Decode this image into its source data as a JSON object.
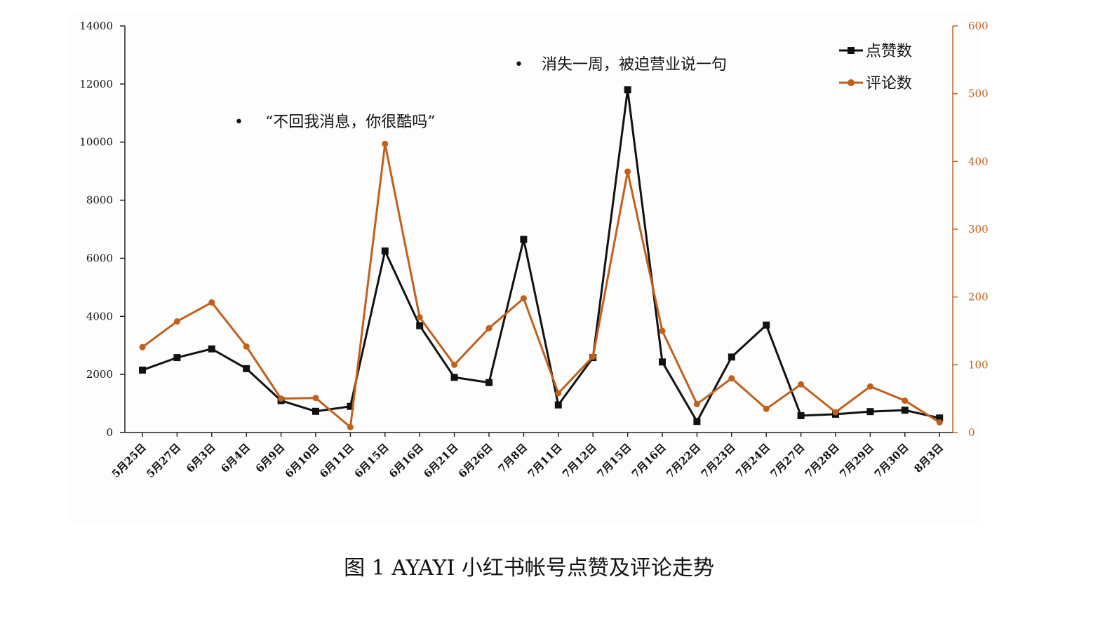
{
  "chart_data": {
    "type": "line",
    "categories": [
      "5月25日",
      "5月27日",
      "6月3日",
      "6月4日",
      "6月9日",
      "6月10日",
      "6月11日",
      "6月15日",
      "6月16日",
      "6月21日",
      "6月26日",
      "7月8日",
      "7月11日",
      "7月12日",
      "7月15日",
      "7月16日",
      "7月22日",
      "7月23日",
      "7月24日",
      "7月27日",
      "7月28日",
      "7月29日",
      "7月30日",
      "8月3日"
    ],
    "series": [
      {
        "name": "点赞数",
        "axis": "left",
        "color": "#111111",
        "marker": "square",
        "values": [
          2150,
          2580,
          2880,
          2200,
          1100,
          730,
          900,
          6250,
          3680,
          1900,
          1720,
          6650,
          950,
          2580,
          11800,
          2430,
          380,
          2600,
          3700,
          580,
          630,
          720,
          770,
          500
        ]
      },
      {
        "name": "评论数",
        "axis": "right",
        "color": "#c0601b",
        "marker": "circle",
        "values": [
          126,
          164,
          192,
          127,
          50,
          51,
          8,
          426,
          170,
          100,
          154,
          198,
          58,
          112,
          385,
          150,
          42,
          80,
          35,
          71,
          30,
          68,
          47,
          15
        ]
      }
    ],
    "y_left": {
      "min": 0,
      "max": 14000,
      "ticks": [
        0,
        2000,
        4000,
        6000,
        8000,
        10000,
        12000,
        14000
      ]
    },
    "y_right": {
      "min": 0,
      "max": 600,
      "ticks": [
        0,
        100,
        200,
        300,
        400,
        500,
        600
      ]
    },
    "legend_position": "top-right",
    "grid": false,
    "annotations": [
      {
        "text": "“不回我消息，你很酷吗”",
        "bullet": "•"
      },
      {
        "text": "消失一周，被迫营业说一句",
        "bullet": "•"
      }
    ],
    "caption": "图 1 AYAYI 小红书帐号点赞及评论走势"
  }
}
